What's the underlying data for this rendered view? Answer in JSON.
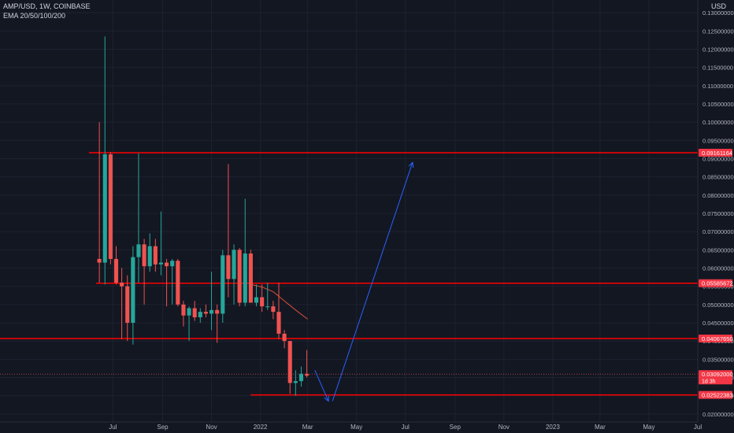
{
  "header": {
    "symbol_line": "AMP/USD, 1W, COINBASE",
    "indicator_line": "EMA 20/50/100/200"
  },
  "currency_label": "USD",
  "colors": {
    "background": "#131722",
    "grid": "#1e2230",
    "up": "#26a69a",
    "down": "#ef5350",
    "level_line": "#ff0000",
    "projection": "#2962ff",
    "ema": "#e04f39",
    "axis_text": "#b2b5be"
  },
  "chart_data": {
    "type": "candlestick",
    "title": "AMP/USD, 1W, COINBASE",
    "y_axis": {
      "ticks": [
        0.02,
        0.025,
        0.03,
        0.035,
        0.04,
        0.045,
        0.05,
        0.055,
        0.06,
        0.065,
        0.07,
        0.075,
        0.08,
        0.085,
        0.09,
        0.095,
        0.1,
        0.105,
        0.11,
        0.115,
        0.12,
        0.125,
        0.13
      ],
      "tick_labels": [
        "0.02000000",
        "0.02500000",
        "0.03000000",
        "0.03500000",
        "0.04000000",
        "0.04500000",
        "0.05000000",
        "0.05500000",
        "0.06000000",
        "0.06500000",
        "0.07000000",
        "0.07500000",
        "0.08000000",
        "0.08500000",
        "0.09000000",
        "0.09500000",
        "0.10000000",
        "0.10500000",
        "0.11000000",
        "0.11500000",
        "0.12000000",
        "0.12500000",
        "0.13000000"
      ],
      "range": [
        0.0178,
        0.1335
      ]
    },
    "x_axis": {
      "tick_labels": [
        "Jul",
        "Sep",
        "Nov",
        "2022",
        "Mar",
        "May",
        "Jul",
        "Sep",
        "Nov",
        "2023",
        "Mar",
        "May",
        "Jul"
      ],
      "tick_dates": [
        "2021-07-01",
        "2021-09-01",
        "2021-11-01",
        "2022-01-01",
        "2022-03-01",
        "2022-05-01",
        "2022-07-01",
        "2022-09-01",
        "2022-11-01",
        "2023-01-01",
        "2023-03-01",
        "2023-05-01",
        "2023-07-01"
      ],
      "range": [
        "2021-02-10",
        "2023-07-01"
      ]
    },
    "candles": [
      {
        "t": "2021-06-14",
        "o": 0.0625,
        "h": 0.1,
        "l": 0.056,
        "c": 0.0615
      },
      {
        "t": "2021-06-21",
        "o": 0.0615,
        "h": 0.1235,
        "l": 0.0555,
        "c": 0.0912
      },
      {
        "t": "2021-06-28",
        "o": 0.0912,
        "h": 0.0918,
        "l": 0.061,
        "c": 0.0625
      },
      {
        "t": "2021-07-05",
        "o": 0.0625,
        "h": 0.066,
        "l": 0.0555,
        "c": 0.056
      },
      {
        "t": "2021-07-12",
        "o": 0.056,
        "h": 0.06,
        "l": 0.0405,
        "c": 0.055
      },
      {
        "t": "2021-07-19",
        "o": 0.055,
        "h": 0.058,
        "l": 0.04,
        "c": 0.045
      },
      {
        "t": "2021-07-26",
        "o": 0.045,
        "h": 0.066,
        "l": 0.039,
        "c": 0.063
      },
      {
        "t": "2021-08-02",
        "o": 0.063,
        "h": 0.0915,
        "l": 0.056,
        "c": 0.0665
      },
      {
        "t": "2021-08-09",
        "o": 0.0665,
        "h": 0.068,
        "l": 0.05,
        "c": 0.0605
      },
      {
        "t": "2021-08-16",
        "o": 0.0605,
        "h": 0.0695,
        "l": 0.059,
        "c": 0.066
      },
      {
        "t": "2021-08-23",
        "o": 0.066,
        "h": 0.068,
        "l": 0.059,
        "c": 0.061
      },
      {
        "t": "2021-08-30",
        "o": 0.061,
        "h": 0.0755,
        "l": 0.058,
        "c": 0.0615
      },
      {
        "t": "2021-09-06",
        "o": 0.0615,
        "h": 0.0625,
        "l": 0.0495,
        "c": 0.0605
      },
      {
        "t": "2021-09-13",
        "o": 0.0605,
        "h": 0.0625,
        "l": 0.05,
        "c": 0.062
      },
      {
        "t": "2021-09-20",
        "o": 0.062,
        "h": 0.0625,
        "l": 0.0495,
        "c": 0.05
      },
      {
        "t": "2021-09-27",
        "o": 0.05,
        "h": 0.051,
        "l": 0.044,
        "c": 0.047
      },
      {
        "t": "2021-10-04",
        "o": 0.047,
        "h": 0.0495,
        "l": 0.04,
        "c": 0.049
      },
      {
        "t": "2021-10-11",
        "o": 0.049,
        "h": 0.051,
        "l": 0.0455,
        "c": 0.0465
      },
      {
        "t": "2021-10-18",
        "o": 0.0465,
        "h": 0.049,
        "l": 0.045,
        "c": 0.048
      },
      {
        "t": "2021-10-25",
        "o": 0.048,
        "h": 0.05,
        "l": 0.0465,
        "c": 0.0475
      },
      {
        "t": "2021-11-01",
        "o": 0.0475,
        "h": 0.059,
        "l": 0.043,
        "c": 0.0485
      },
      {
        "t": "2021-11-08",
        "o": 0.0485,
        "h": 0.05,
        "l": 0.0395,
        "c": 0.0475
      },
      {
        "t": "2021-11-15",
        "o": 0.0475,
        "h": 0.065,
        "l": 0.045,
        "c": 0.0635
      },
      {
        "t": "2021-11-22",
        "o": 0.0635,
        "h": 0.0885,
        "l": 0.052,
        "c": 0.057
      },
      {
        "t": "2021-11-29",
        "o": 0.057,
        "h": 0.0665,
        "l": 0.05,
        "c": 0.065
      },
      {
        "t": "2021-12-06",
        "o": 0.065,
        "h": 0.0655,
        "l": 0.0495,
        "c": 0.0505
      },
      {
        "t": "2021-12-13",
        "o": 0.0505,
        "h": 0.079,
        "l": 0.0495,
        "c": 0.064
      },
      {
        "t": "2021-12-20",
        "o": 0.064,
        "h": 0.065,
        "l": 0.0505,
        "c": 0.0505
      },
      {
        "t": "2021-12-27",
        "o": 0.0505,
        "h": 0.0555,
        "l": 0.0495,
        "c": 0.052
      },
      {
        "t": "2022-01-03",
        "o": 0.052,
        "h": 0.0555,
        "l": 0.048,
        "c": 0.0495
      },
      {
        "t": "2022-01-10",
        "o": 0.0495,
        "h": 0.056,
        "l": 0.0485,
        "c": 0.0495
      },
      {
        "t": "2022-01-17",
        "o": 0.0495,
        "h": 0.051,
        "l": 0.046,
        "c": 0.048
      },
      {
        "t": "2022-01-24",
        "o": 0.048,
        "h": 0.056,
        "l": 0.0405,
        "c": 0.042
      },
      {
        "t": "2022-01-31",
        "o": 0.042,
        "h": 0.043,
        "l": 0.038,
        "c": 0.04
      },
      {
        "t": "2022-02-07",
        "o": 0.04,
        "h": 0.04,
        "l": 0.0255,
        "c": 0.0285
      },
      {
        "t": "2022-02-14",
        "o": 0.0285,
        "h": 0.032,
        "l": 0.025,
        "c": 0.029
      },
      {
        "t": "2022-02-21",
        "o": 0.029,
        "h": 0.033,
        "l": 0.0275,
        "c": 0.031
      },
      {
        "t": "2022-02-28",
        "o": 0.031,
        "h": 0.0375,
        "l": 0.03,
        "c": 0.0305
      }
    ],
    "ema_line": [
      {
        "t": "2021-12-20",
        "v": 0.0555
      },
      {
        "t": "2022-01-03",
        "v": 0.0548
      },
      {
        "t": "2022-01-17",
        "v": 0.0535
      },
      {
        "t": "2022-01-31",
        "v": 0.051
      },
      {
        "t": "2022-02-14",
        "v": 0.0485
      },
      {
        "t": "2022-03-01",
        "v": 0.046
      }
    ],
    "horizontal_levels": [
      {
        "value": 0.09161164,
        "label": "0.09161164",
        "from": "2021-06-01"
      },
      {
        "value": 0.05585672,
        "label": "0.05585672",
        "from": "2021-06-10"
      },
      {
        "value": 0.0406765,
        "label": "0.04067650",
        "from": "2021-02-10"
      },
      {
        "value": 0.02522383,
        "label": "0.02522383",
        "from": "2021-12-20"
      }
    ],
    "current_price": {
      "value": 0.03092,
      "label": "0.03092000",
      "countdown": "1d 3h"
    },
    "projection_arrows": [
      {
        "points": [
          {
            "t": "2022-03-10",
            "v": 0.032
          },
          {
            "t": "2022-03-27",
            "v": 0.0235
          }
        ]
      },
      {
        "points": [
          {
            "t": "2022-04-01",
            "v": 0.0235
          },
          {
            "t": "2022-07-10",
            "v": 0.089
          }
        ]
      }
    ]
  }
}
